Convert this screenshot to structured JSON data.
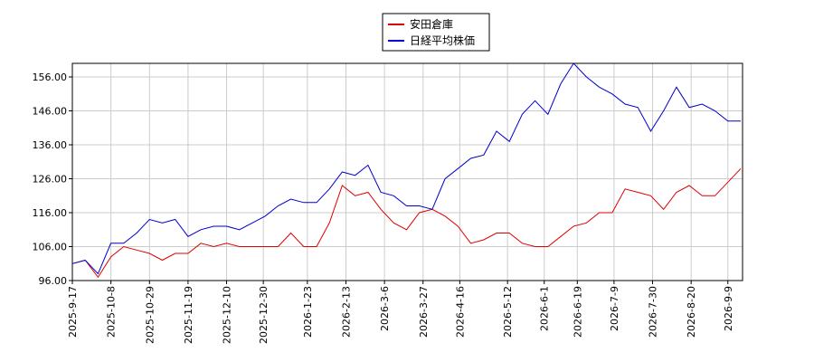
{
  "chart_data": {
    "type": "line",
    "x": [
      "2025-09-17",
      "2025-09-24",
      "2025-10-01",
      "2025-10-08",
      "2025-10-15",
      "2025-10-22",
      "2025-10-29",
      "2025-11-05",
      "2025-11-12",
      "2025-11-19",
      "2025-11-26",
      "2025-12-03",
      "2025-12-10",
      "2025-12-17",
      "2025-12-24",
      "2025-12-31",
      "2026-01-07",
      "2026-01-14",
      "2026-01-21",
      "2026-01-28",
      "2026-02-04",
      "2026-02-11",
      "2026-02-18",
      "2026-02-25",
      "2026-03-04",
      "2026-03-11",
      "2026-03-18",
      "2026-03-25",
      "2026-04-01",
      "2026-04-08",
      "2026-04-15",
      "2026-04-22",
      "2026-04-29",
      "2026-05-06",
      "2026-05-13",
      "2026-05-20",
      "2026-05-27",
      "2026-06-03",
      "2026-06-10",
      "2026-06-17",
      "2026-06-24",
      "2026-07-01",
      "2026-07-08",
      "2026-07-15",
      "2026-07-22",
      "2026-07-29",
      "2026-08-05",
      "2026-08-12",
      "2026-08-19",
      "2026-08-26",
      "2026-09-02",
      "2026-09-09",
      "2026-09-16"
    ],
    "series": [
      {
        "name": "安田倉庫",
        "color": "#dd0000",
        "values": [
          101,
          102,
          97,
          103,
          106,
          105,
          104,
          102,
          104,
          104,
          107,
          106,
          107,
          106,
          106,
          106,
          106,
          110,
          106,
          106,
          113,
          124,
          121,
          122,
          117,
          113,
          111,
          116,
          117,
          115,
          112,
          107,
          108,
          110,
          110,
          107,
          106,
          106,
          109,
          112,
          113,
          116,
          116,
          123,
          122,
          121,
          117,
          122,
          124,
          121,
          121,
          125,
          129
        ]
      },
      {
        "name": "日経平均株価",
        "color": "#0000cc",
        "values": [
          101,
          102,
          98,
          107,
          107,
          110,
          114,
          113,
          114,
          109,
          111,
          112,
          112,
          111,
          113,
          115,
          118,
          120,
          119,
          119,
          123,
          128,
          127,
          130,
          122,
          121,
          118,
          118,
          117,
          126,
          129,
          132,
          133,
          140,
          137,
          145,
          149,
          145,
          154,
          160,
          156,
          153,
          151,
          148,
          147,
          140,
          146,
          153,
          147,
          148,
          146,
          143,
          143
        ]
      }
    ],
    "xlim": [
      "2025-09-17",
      "2026-09-17"
    ],
    "xticks": [
      {
        "value": "2025-09-17",
        "label": "2025-9-17"
      },
      {
        "value": "2025-10-08",
        "label": "2025-10-8"
      },
      {
        "value": "2025-10-29",
        "label": "2025-10-29"
      },
      {
        "value": "2025-11-19",
        "label": "2025-11-19"
      },
      {
        "value": "2025-12-10",
        "label": "2025-12-10"
      },
      {
        "value": "2025-12-30",
        "label": "2025-12-30"
      },
      {
        "value": "2026-01-23",
        "label": "2026-1-23"
      },
      {
        "value": "2026-02-13",
        "label": "2026-2-13"
      },
      {
        "value": "2026-03-06",
        "label": "2026-3-6"
      },
      {
        "value": "2026-03-27",
        "label": "2026-3-27"
      },
      {
        "value": "2026-04-16",
        "label": "2026-4-16"
      },
      {
        "value": "2026-05-12",
        "label": "2026-5-12"
      },
      {
        "value": "2026-06-01",
        "label": "2026-6-1"
      },
      {
        "value": "2026-06-19",
        "label": "2026-6-19"
      },
      {
        "value": "2026-07-09",
        "label": "2026-7-9"
      },
      {
        "value": "2026-07-30",
        "label": "2026-7-30"
      },
      {
        "value": "2026-08-20",
        "label": "2026-8-20"
      },
      {
        "value": "2026-09-09",
        "label": "2026-9-9"
      }
    ],
    "ylim": [
      96,
      160
    ],
    "yticks": [
      {
        "value": 96,
        "label": "96.00"
      },
      {
        "value": 106,
        "label": "106.00"
      },
      {
        "value": 116,
        "label": "116.00"
      },
      {
        "value": 126,
        "label": "126.00"
      },
      {
        "value": 136,
        "label": "136.00"
      },
      {
        "value": 146,
        "label": "146.00"
      },
      {
        "value": 156,
        "label": "156.00"
      }
    ],
    "grid": true,
    "legend": "top"
  }
}
